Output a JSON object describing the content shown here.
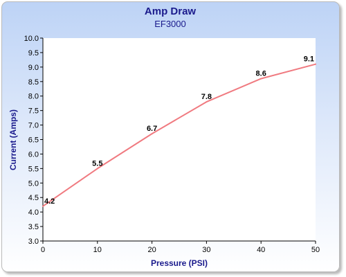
{
  "colors": {
    "title": "#1a1a8c",
    "axis_title": "#1a1a8c",
    "line": "#f07a80",
    "plot_background": "#ffffff",
    "axis": "#000000"
  },
  "chart_data": {
    "type": "line",
    "title": "Amp Draw",
    "subtitle": "EF3000",
    "xlabel": "Pressure (PSI)",
    "ylabel": "Current (Amps)",
    "x": [
      0,
      10,
      20,
      30,
      40,
      50
    ],
    "series": [
      {
        "values": [
          4.2,
          5.5,
          6.7,
          7.8,
          8.6,
          9.1
        ]
      }
    ],
    "data_labels": [
      "4.2",
      "5.5",
      "6.7",
      "7.8",
      "8.6",
      "9.1"
    ],
    "xlim": [
      0,
      50
    ],
    "ylim": [
      3.0,
      10.0
    ],
    "x_ticks": [
      0,
      10,
      20,
      30,
      40,
      50
    ],
    "x_tick_labels": [
      "0",
      "10",
      "20",
      "30",
      "40",
      "50"
    ],
    "y_ticks": [
      3.0,
      3.5,
      4.0,
      4.5,
      5.0,
      5.5,
      6.0,
      6.5,
      7.0,
      7.5,
      8.0,
      8.5,
      9.0,
      9.5,
      10.0
    ],
    "y_tick_labels": [
      "3.0",
      "3.5",
      "4.0",
      "4.5",
      "5.0",
      "5.5",
      "6.0",
      "6.5",
      "7.0",
      "7.5",
      "8.0",
      "8.5",
      "9.0",
      "9.5",
      "10.0"
    ],
    "grid": false,
    "legend": "none"
  }
}
